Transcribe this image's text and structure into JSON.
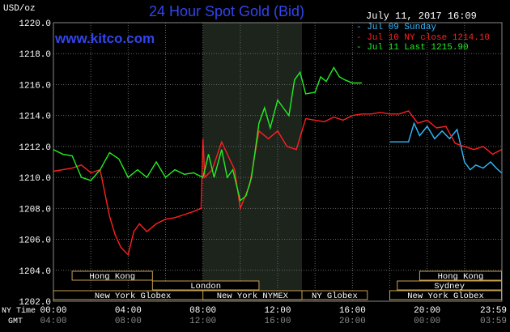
{
  "header": {
    "unit": "USD/oz",
    "title": "24 Hour Spot Gold (Bid)",
    "website": "www.kitco.com",
    "timestamp": "July 11, 2017 16:09"
  },
  "legend": [
    {
      "label": "- Jul 09 Sunday",
      "color": "#33bbff"
    },
    {
      "label": "- Jul 10 NY close 1214.10",
      "color": "#ff2020"
    },
    {
      "label": "- Jul 11 Last 1215.90",
      "color": "#22ee22"
    }
  ],
  "axis_rows": {
    "ny_time_label": "NY Time",
    "gmt_label": "GMT",
    "ny_ticks": [
      "00:00",
      "04:00",
      "08:00",
      "12:00",
      "16:00",
      "20:00",
      "23:59"
    ],
    "gmt_ticks": [
      "04:00",
      "08:00",
      "12:00",
      "16:00",
      "20:00",
      "00:00",
      "03:59"
    ]
  },
  "sessions": [
    {
      "label": "Hong Kong",
      "row": 0
    },
    {
      "label": "London",
      "row": 1
    },
    {
      "label": "New York Globex",
      "row": 2
    },
    {
      "label": "New York NYMEX",
      "row": 2
    },
    {
      "label": "NY Globex",
      "row": 2
    },
    {
      "label": "Hong Kong",
      "row": 0
    },
    {
      "label": "Sydney",
      "row": 1
    },
    {
      "label": "New York Globex",
      "row": 2
    }
  ],
  "colors": {
    "background": "#000000",
    "grid": "#666666",
    "highlight": "#1c241c",
    "session_border": "#c8a050"
  },
  "chart_data": {
    "type": "line",
    "title": "24 Hour Spot Gold (Bid)",
    "ylabel": "USD/oz",
    "y_ticks": [
      "1202.0",
      "1204.0",
      "1206.0",
      "1208.0",
      "1210.0",
      "1212.0",
      "1214.0",
      "1216.0",
      "1218.0",
      "1220.0"
    ],
    "ylim": [
      1202,
      1220
    ],
    "xlim": [
      0,
      24
    ],
    "grid": true,
    "legend_position": "top-right",
    "series": [
      {
        "name": "Jul 09 Sunday",
        "color": "#33bbff",
        "x": [
          18.0,
          19.0,
          19.3,
          19.6,
          20.0,
          20.4,
          20.8,
          21.2,
          21.6,
          22.0,
          22.3,
          22.6,
          23.0,
          23.4,
          23.7,
          23.98
        ],
        "y": [
          1212.3,
          1212.3,
          1213.5,
          1212.7,
          1213.3,
          1212.5,
          1213.0,
          1212.5,
          1213.1,
          1211.0,
          1210.5,
          1210.8,
          1210.6,
          1211.0,
          1210.6,
          1210.3
        ]
      },
      {
        "name": "Jul 10 NY close 1214.10",
        "color": "#ff2020",
        "x": [
          0.0,
          0.5,
          1.0,
          1.5,
          2.0,
          2.5,
          3.0,
          3.3,
          3.6,
          4.0,
          4.3,
          4.6,
          5.0,
          5.5,
          6.0,
          6.5,
          7.0,
          7.5,
          7.9,
          8.0,
          8.1,
          8.5,
          9.0,
          9.5,
          9.7,
          10.0,
          10.5,
          11.0,
          11.5,
          12.0,
          12.5,
          13.0,
          13.5,
          14.0,
          14.5,
          15.0,
          15.5,
          16.0,
          16.5,
          17.0,
          17.5,
          18.0,
          18.5,
          19.0,
          19.5,
          20.0,
          20.5,
          21.0,
          21.5,
          22.0,
          22.5,
          23.0,
          23.5,
          23.98
        ],
        "y": [
          1210.4,
          1210.5,
          1210.6,
          1210.8,
          1210.3,
          1210.5,
          1207.5,
          1206.3,
          1205.5,
          1205.0,
          1206.5,
          1207.0,
          1206.5,
          1207.0,
          1207.3,
          1207.4,
          1207.6,
          1207.8,
          1208.0,
          1212.5,
          1210.0,
          1210.5,
          1212.3,
          1211.0,
          1210.5,
          1208.0,
          1209.5,
          1213.0,
          1212.5,
          1213.0,
          1212.0,
          1211.8,
          1213.8,
          1213.7,
          1213.6,
          1213.9,
          1213.7,
          1214.0,
          1214.1,
          1214.1,
          1214.2,
          1214.1,
          1214.1,
          1214.3,
          1213.5,
          1213.7,
          1213.2,
          1213.3,
          1212.2,
          1212.0,
          1211.8,
          1212.0,
          1211.5,
          1211.8
        ]
      },
      {
        "name": "Jul 11 Last 1215.90",
        "color": "#22ee22",
        "x": [
          0.0,
          0.5,
          1.0,
          1.5,
          2.0,
          2.5,
          3.0,
          3.5,
          4.0,
          4.5,
          5.0,
          5.5,
          6.0,
          6.5,
          7.0,
          7.5,
          8.0,
          8.3,
          8.6,
          9.0,
          9.3,
          9.6,
          10.0,
          10.3,
          10.6,
          11.0,
          11.3,
          11.6,
          12.0,
          12.3,
          12.6,
          12.9,
          13.2,
          13.5,
          14.0,
          14.3,
          14.6,
          15.0,
          15.3,
          15.6,
          16.0,
          16.5
        ],
        "y": [
          1211.8,
          1211.5,
          1211.4,
          1210.0,
          1209.8,
          1210.5,
          1211.6,
          1211.2,
          1210.0,
          1210.5,
          1210.0,
          1211.0,
          1210.0,
          1210.5,
          1210.2,
          1210.3,
          1210.0,
          1211.5,
          1210.0,
          1211.8,
          1210.0,
          1210.5,
          1208.5,
          1208.8,
          1210.0,
          1213.5,
          1214.5,
          1213.2,
          1215.0,
          1214.5,
          1214.0,
          1216.3,
          1216.8,
          1215.4,
          1215.5,
          1216.5,
          1216.2,
          1217.1,
          1216.5,
          1216.3,
          1216.1,
          1216.1
        ]
      }
    ]
  }
}
